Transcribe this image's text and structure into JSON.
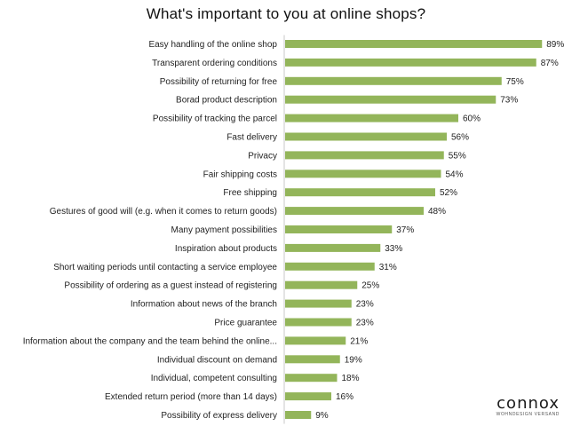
{
  "chart_data": {
    "type": "bar",
    "orientation": "horizontal",
    "title": "What's important to you at online shops?",
    "categories": [
      "Easy handling of the online shop",
      "Transparent ordering conditions",
      "Possibility of returning for free",
      "Borad product description",
      "Possibility of tracking the parcel",
      "Fast delivery",
      "Privacy",
      "Fair shipping costs",
      "Free shipping",
      "Gestures of good will (e.g. when it comes to return goods)",
      "Many payment possibilities",
      "Inspiration about products",
      "Short waiting periods until contacting a service employee",
      "Possibility of ordering as a guest instead of registering",
      "Information about news of the branch",
      "Price guarantee",
      "Information about the company and the team behind the online...",
      "Individual discount on demand",
      "Individual, competent consulting",
      "Extended return period (more than 14 days)",
      "Possibility of express delivery"
    ],
    "values": [
      89,
      87,
      75,
      73,
      60,
      56,
      55,
      54,
      52,
      48,
      37,
      33,
      31,
      25,
      23,
      23,
      21,
      19,
      18,
      16,
      9
    ],
    "value_suffix": "%",
    "xlim": [
      0,
      100
    ],
    "bar_color": "#93b55a",
    "grid": false
  },
  "brand": {
    "name": "connox",
    "tagline": "WOHNDESIGN VERSAND"
  }
}
